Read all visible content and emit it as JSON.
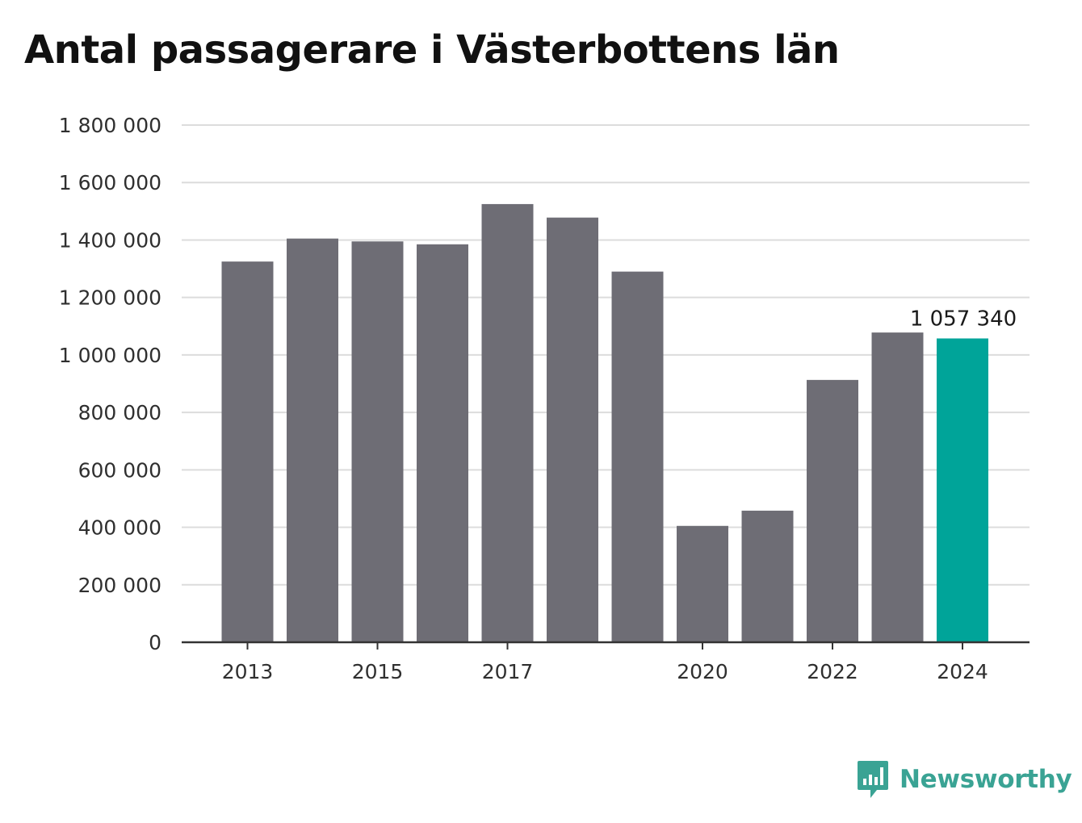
{
  "title": "Antal passagerare i Västerbottens län",
  "brand": {
    "name": "Newsworthy",
    "icon": "bar-chart-speech-bubble-icon",
    "color": "#3aa394"
  },
  "colors": {
    "bar": "#6e6d75",
    "highlight": "#00a499",
    "grid": "#dcdcdc",
    "axis": "#333333"
  },
  "chart_data": {
    "type": "bar",
    "title": "Antal passagerare i Västerbottens län",
    "xlabel": "",
    "ylabel": "",
    "categories": [
      "2013",
      "2014",
      "2015",
      "2016",
      "2017",
      "2018",
      "2019",
      "2020",
      "2021",
      "2022",
      "2023",
      "2024"
    ],
    "values": [
      1325000,
      1405000,
      1395000,
      1385000,
      1525000,
      1478000,
      1290000,
      405000,
      458000,
      913000,
      1078000,
      1057340
    ],
    "highlight_index": 11,
    "highlight_label": "1 057 340",
    "ylim": [
      0,
      1800000
    ],
    "yticks": [
      0,
      200000,
      400000,
      600000,
      800000,
      1000000,
      1200000,
      1400000,
      1600000,
      1800000
    ],
    "ytick_labels": [
      "0",
      "200 000",
      "400 000",
      "600 000",
      "800 000",
      "1 000 000",
      "1 200 000",
      "1 400 000",
      "1 600 000",
      "1 800 000"
    ],
    "xtick_labels": [
      "2013",
      "2015",
      "2017",
      "2020",
      "2022",
      "2024"
    ],
    "grid": true,
    "legend": "none"
  }
}
